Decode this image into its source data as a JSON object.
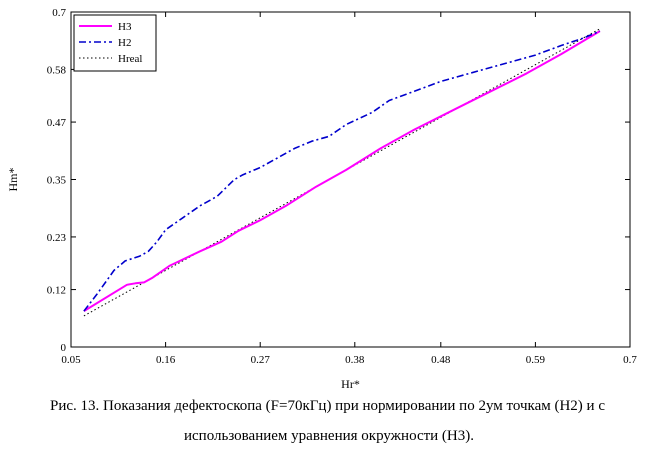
{
  "chart_data": {
    "type": "line",
    "xlabel": "Hr*",
    "ylabel": "Hm*",
    "xlim": [
      0.05,
      0.7
    ],
    "ylim": [
      0,
      0.7
    ],
    "xticks": [
      "0.05",
      "0.16",
      "0.27",
      "0.38",
      "0.48",
      "0.59",
      "0.7"
    ],
    "yticks": [
      "0",
      "0.12",
      "0.23",
      "0.35",
      "0.47",
      "0.58",
      "0.7"
    ],
    "legend_position": "top-left",
    "series": [
      {
        "name": "H3",
        "color": "#ff00ff",
        "style": "solid",
        "x": [
          0.065,
          0.115,
          0.125,
          0.135,
          0.145,
          0.165,
          0.2,
          0.225,
          0.245,
          0.27,
          0.3,
          0.335,
          0.37,
          0.41,
          0.45,
          0.5,
          0.55,
          0.58,
          0.62,
          0.665
        ],
        "y": [
          0.075,
          0.13,
          0.133,
          0.135,
          0.145,
          0.17,
          0.2,
          0.22,
          0.243,
          0.265,
          0.295,
          0.335,
          0.37,
          0.415,
          0.455,
          0.5,
          0.545,
          0.572,
          0.612,
          0.66
        ]
      },
      {
        "name": "H2",
        "color": "#0000cc",
        "style": "dashdot",
        "x": [
          0.065,
          0.08,
          0.1,
          0.113,
          0.13,
          0.14,
          0.15,
          0.16,
          0.18,
          0.2,
          0.22,
          0.24,
          0.25,
          0.27,
          0.29,
          0.31,
          0.33,
          0.35,
          0.37,
          0.4,
          0.42,
          0.45,
          0.48,
          0.5,
          0.54,
          0.57,
          0.59,
          0.62,
          0.645,
          0.665
        ],
        "y": [
          0.075,
          0.11,
          0.16,
          0.18,
          0.19,
          0.2,
          0.22,
          0.245,
          0.27,
          0.295,
          0.315,
          0.35,
          0.36,
          0.375,
          0.395,
          0.415,
          0.43,
          0.44,
          0.465,
          0.49,
          0.515,
          0.535,
          0.555,
          0.565,
          0.585,
          0.6,
          0.61,
          0.63,
          0.645,
          0.66
        ]
      },
      {
        "name": "Hreal",
        "color": "#000000",
        "style": "dotted",
        "x": [
          0.065,
          0.665
        ],
        "y": [
          0.065,
          0.665
        ]
      }
    ]
  },
  "caption": {
    "line1": "Рис. 13. Показания дефектоскопа (F=70кГц) при нормировании по 2ум точкам (H2) и с",
    "line2": "использованием уравнения окружности (H3)."
  }
}
